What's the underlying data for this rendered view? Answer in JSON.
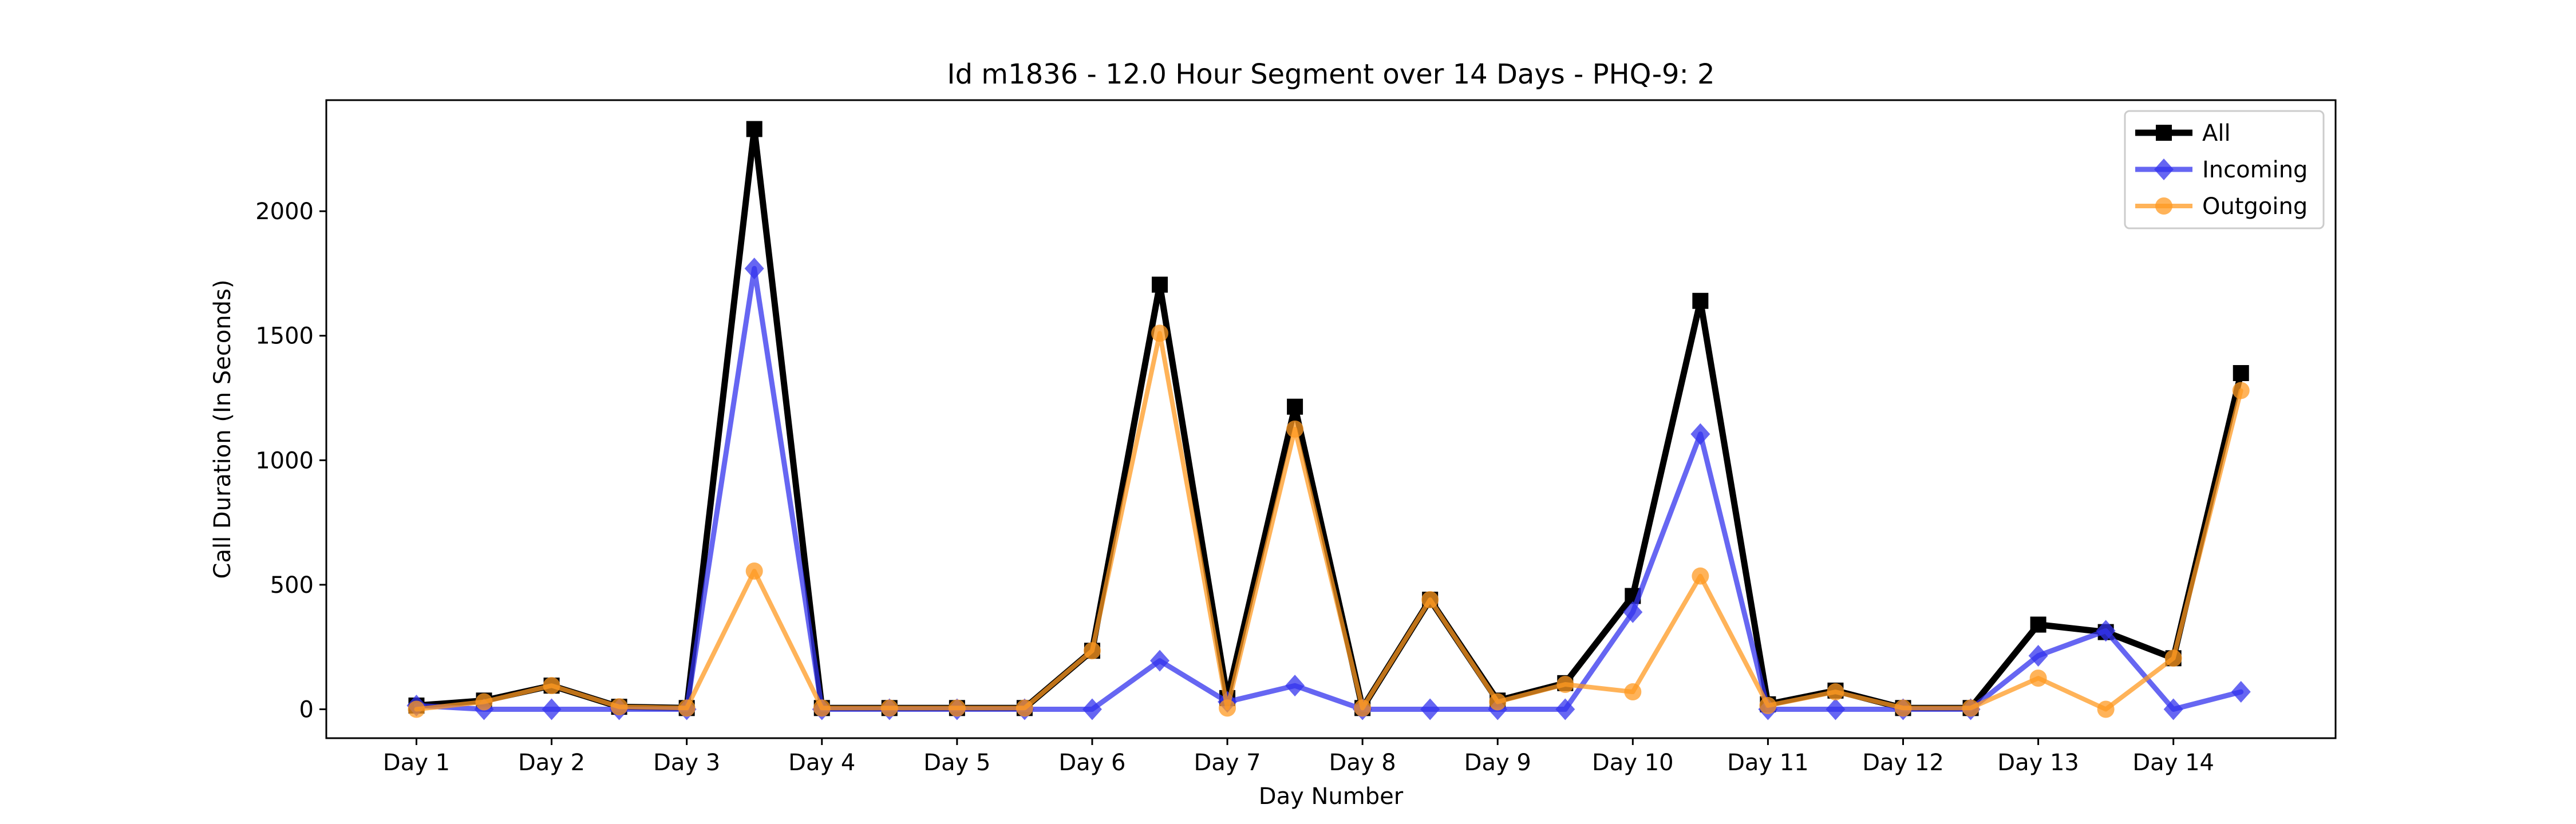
{
  "chart_data": {
    "type": "line",
    "title": "Id m1836 - 12.0 Hour Segment over 14 Days - PHQ-9: 2",
    "xlabel": "Day Number",
    "ylabel": "Call Duration (In Seconds)",
    "x": [
      1,
      1.5,
      2,
      2.5,
      3,
      3.5,
      4,
      4.5,
      5,
      5.5,
      6,
      6.5,
      7,
      7.5,
      8,
      8.5,
      9,
      9.5,
      10,
      10.5,
      11,
      11.5,
      12,
      12.5,
      13,
      13.5,
      14,
      14.5
    ],
    "xticks": [
      1,
      2,
      3,
      4,
      5,
      6,
      7,
      8,
      9,
      10,
      11,
      12,
      13,
      14
    ],
    "xtick_labels": [
      "Day 1",
      "Day 2",
      "Day 3",
      "Day 4",
      "Day 5",
      "Day 6",
      "Day 7",
      "Day 8",
      "Day 9",
      "Day 10",
      "Day 11",
      "Day 12",
      "Day 13",
      "Day 14"
    ],
    "xlim": [
      0.333,
      15.2
    ],
    "yticks": [
      0,
      500,
      1000,
      1500,
      2000
    ],
    "ytick_labels": [
      "0",
      "500",
      "1000",
      "1500",
      "2000"
    ],
    "ylim": [
      -116,
      2446
    ],
    "grid": false,
    "legend_position": "top-right",
    "series": [
      {
        "name": "All",
        "color": "#000000",
        "marker": "square",
        "values": [
          15,
          35,
          95,
          10,
          5,
          2330,
          5,
          5,
          5,
          5,
          235,
          1705,
          45,
          1215,
          5,
          440,
          35,
          105,
          455,
          1640,
          20,
          75,
          5,
          5,
          340,
          310,
          205,
          1350
        ]
      },
      {
        "name": "Incoming",
        "color": "#3333ee",
        "marker": "diamond",
        "values": [
          15,
          0,
          0,
          0,
          0,
          1770,
          0,
          0,
          0,
          0,
          0,
          195,
          30,
          95,
          0,
          0,
          0,
          0,
          390,
          1105,
          0,
          0,
          0,
          0,
          215,
          315,
          0,
          70
        ]
      },
      {
        "name": "Outgoing",
        "color": "#ff9922",
        "marker": "circle",
        "values": [
          0,
          30,
          95,
          10,
          5,
          555,
          5,
          5,
          5,
          5,
          235,
          1510,
          5,
          1125,
          5,
          440,
          30,
          100,
          70,
          535,
          15,
          70,
          5,
          5,
          125,
          0,
          205,
          1280
        ]
      }
    ]
  }
}
